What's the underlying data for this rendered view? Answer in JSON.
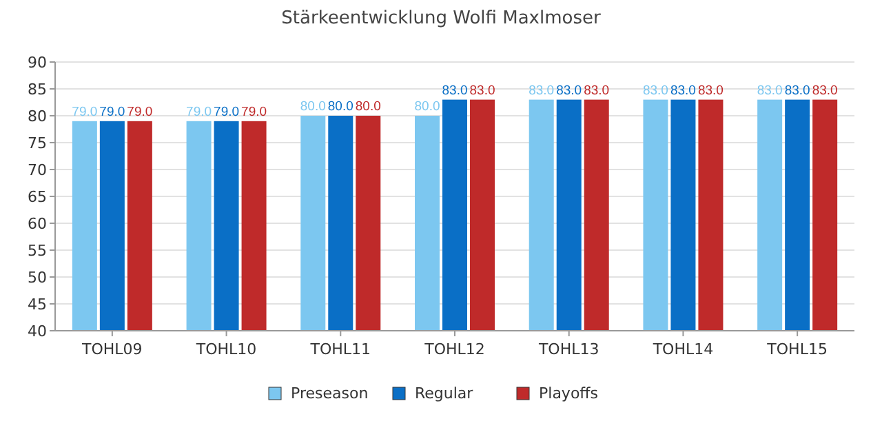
{
  "chart_data": {
    "type": "bar",
    "title": "Stärkeentwicklung Wolfi Maxlmoser",
    "categories": [
      "TOHL09",
      "TOHL10",
      "TOHL11",
      "TOHL12",
      "TOHL13",
      "TOHL14",
      "TOHL15"
    ],
    "series": [
      {
        "name": "Preseason",
        "color": "#7cc7f0",
        "values": [
          79,
          79,
          80,
          80,
          83,
          83,
          83
        ],
        "value_labels": [
          "79.0",
          "79.0",
          "80.0",
          "80.0",
          "83.0",
          "83.0",
          "83.0"
        ]
      },
      {
        "name": "Regular",
        "color": "#0a6fc6",
        "values": [
          79,
          79,
          80,
          83,
          83,
          83,
          83
        ],
        "value_labels": [
          "79.0",
          "79.0",
          "80.0",
          "83.0",
          "83.0",
          "83.0",
          "83.0"
        ]
      },
      {
        "name": "Playoffs",
        "color": "#bf2a2a",
        "values": [
          79,
          79,
          80,
          83,
          83,
          83,
          83
        ],
        "value_labels": [
          "79.0",
          "79.0",
          "80.0",
          "83.0",
          "83.0",
          "83.0",
          "83.0"
        ]
      }
    ],
    "ylim": [
      40,
      90
    ],
    "yticks": [
      40,
      45,
      50,
      55,
      60,
      65,
      70,
      75,
      80,
      85,
      90
    ],
    "grid": "y",
    "legend": "bottom"
  }
}
